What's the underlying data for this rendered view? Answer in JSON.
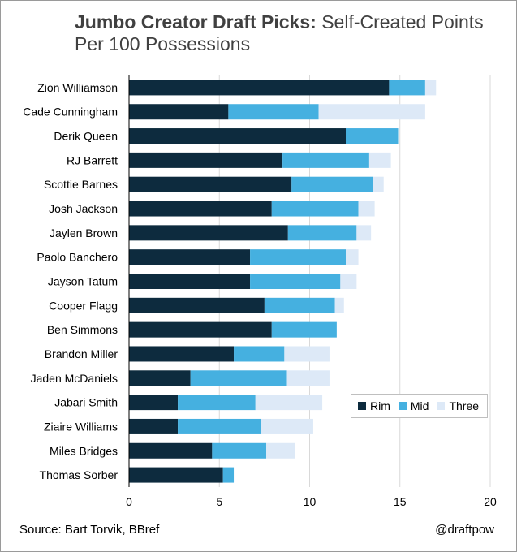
{
  "title": {
    "bold": "Jumbo Creator Draft Picks:",
    "normal": " Self-Created Points Per 100 Possessions"
  },
  "footer": {
    "source": "Source: Bart Torvik, BBref",
    "credit": "@draftpow"
  },
  "colors": {
    "Rim": "#0d2b3e",
    "Mid": "#45b0e0",
    "Three": "#dde9f7",
    "grid": "#d9d9d9",
    "axis": "#000000"
  },
  "chart_data": {
    "type": "bar",
    "orientation": "horizontal",
    "stacked": true,
    "categories": [
      "Zion Williamson",
      "Cade Cunningham",
      "Derik Queen",
      "RJ Barrett",
      "Scottie Barnes",
      "Josh Jackson",
      "Jaylen Brown",
      "Paolo Banchero",
      "Jayson Tatum",
      "Cooper Flagg",
      "Ben Simmons",
      "Brandon Miller",
      "Jaden McDaniels",
      "Jabari Smith",
      "Ziaire Williams",
      "Miles Bridges",
      "Thomas Sorber"
    ],
    "series": [
      {
        "name": "Rim",
        "values": [
          14.4,
          5.5,
          12.0,
          8.5,
          9.0,
          7.9,
          8.8,
          6.7,
          6.7,
          7.5,
          7.9,
          5.8,
          3.4,
          2.7,
          2.7,
          4.6,
          5.2
        ]
      },
      {
        "name": "Mid",
        "values": [
          2.0,
          5.0,
          2.9,
          4.8,
          4.5,
          4.8,
          3.8,
          5.3,
          5.0,
          3.9,
          3.6,
          2.8,
          5.3,
          4.3,
          4.6,
          3.0,
          0.6
        ]
      },
      {
        "name": "Three",
        "values": [
          0.6,
          5.9,
          0.0,
          1.2,
          0.6,
          0.9,
          0.8,
          0.7,
          0.9,
          0.5,
          0.0,
          2.5,
          2.4,
          3.7,
          2.9,
          1.6,
          0.0
        ]
      }
    ],
    "xlim": [
      0,
      20
    ],
    "xticks": [
      0,
      5,
      10,
      15,
      20
    ],
    "xlabel": "",
    "ylabel": "",
    "grid": true,
    "legend_position": "lower-right"
  }
}
